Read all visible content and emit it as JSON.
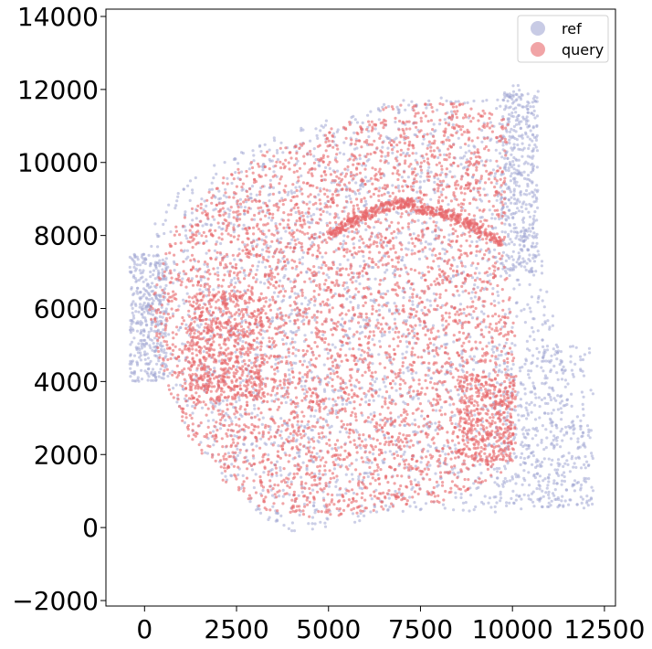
{
  "chart_data": {
    "type": "scatter",
    "title": "",
    "xlabel": "",
    "ylabel": "",
    "xlim": [
      -1050,
      12800
    ],
    "ylim": [
      -2150,
      14200
    ],
    "xticks": [
      0,
      2500,
      5000,
      7500,
      10000,
      12500
    ],
    "xtick_labels": [
      "0",
      "2500",
      "5000",
      "7500",
      "10000",
      "12500"
    ],
    "yticks": [
      -2000,
      0,
      2000,
      4000,
      6000,
      8000,
      10000,
      12000,
      14000
    ],
    "ytick_labels": [
      "−2000",
      "0",
      "2000",
      "4000",
      "6000",
      "8000",
      "10000",
      "12000",
      "14000"
    ],
    "grid": false,
    "legend_position": "top-right",
    "series": [
      {
        "name": "ref",
        "color": "#a3a8d4",
        "marker": "circle",
        "alpha": 0.55,
        "region_outline_x": [
          -400,
          300,
          1500,
          3000,
          5000,
          7500,
          8800,
          9400,
          10000,
          10300,
          10700,
          10700,
          11300,
          11800,
          12200,
          12200,
          11500,
          10300,
          9000,
          8000,
          7000,
          6000,
          5000,
          4000,
          3300,
          2000,
          1000,
          100,
          -400
        ],
        "region_outline_y": [
          6000,
          8500,
          9800,
          10600,
          11200,
          11900,
          11800,
          11700,
          12100,
          12300,
          11000,
          8000,
          5000,
          3000,
          2000,
          600,
          400,
          600,
          300,
          400,
          400,
          200,
          0,
          -100,
          200,
          1500,
          3000,
          4500,
          6000
        ],
        "dense_subregions": [
          {
            "x_range": [
              9700,
              10700
            ],
            "y_range": [
              7000,
              12000
            ]
          },
          {
            "x_range": [
              9500,
              12200
            ],
            "y_range": [
              500,
              5000
            ]
          },
          {
            "x_range": [
              -400,
              600
            ],
            "y_range": [
              4000,
              7500
            ]
          }
        ]
      },
      {
        "name": "query",
        "color": "#e8686a",
        "marker": "circle",
        "alpha": 0.6,
        "region_outline_x": [
          100,
          800,
          2000,
          3500,
          5000,
          6500,
          7500,
          8700,
          9900,
          9800,
          9800,
          10100,
          10100,
          9700,
          8300,
          7000,
          5600,
          4300,
          3200,
          2200,
          1200,
          500,
          100
        ],
        "region_outline_y": [
          6000,
          8200,
          9500,
          10400,
          10900,
          11500,
          11700,
          11600,
          11200,
          9700,
          7400,
          5000,
          2500,
          1500,
          700,
          600,
          300,
          250,
          500,
          1200,
          2500,
          4200,
          6000
        ],
        "features": [
          {
            "name": "hippocampal arc",
            "x_range": [
              5000,
              9800
            ],
            "y_range": [
              7200,
              9000
            ]
          },
          {
            "name": "dense left cluster",
            "x_range": [
              1200,
              3200
            ],
            "y_range": [
              3500,
              6500
            ]
          },
          {
            "name": "dense right cluster",
            "x_range": [
              8500,
              10100
            ],
            "y_range": [
              1800,
              4200
            ]
          }
        ]
      }
    ]
  }
}
